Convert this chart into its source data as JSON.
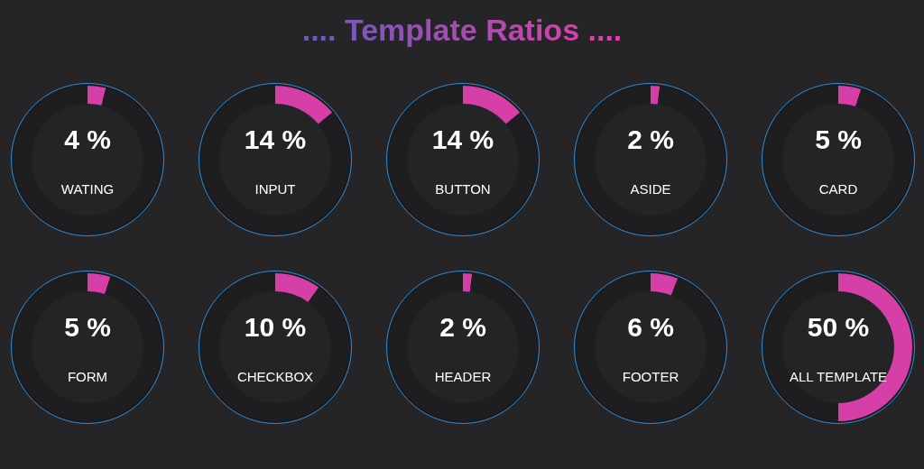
{
  "chart_data": [
    {
      "type": "other",
      "title": ".... Template Ratios ...."
    },
    {
      "type": "donut",
      "title": "WATING",
      "categories": [
        null,
        null
      ],
      "values": [
        4,
        96
      ],
      "colors": [
        "#d63fa8",
        "#1e1e21"
      ],
      "value_labels": [
        "4 %",
        null
      ]
    },
    {
      "type": "donut",
      "title": "INPUT",
      "categories": [
        null,
        null
      ],
      "values": [
        14,
        86
      ],
      "colors": [
        "#d63fa8",
        "#1e1e21"
      ],
      "value_labels": [
        "14 %",
        null
      ]
    },
    {
      "type": "donut",
      "title": "BUTTON",
      "categories": [
        null,
        null
      ],
      "values": [
        14,
        86
      ],
      "colors": [
        "#d63fa8",
        "#1e1e21"
      ],
      "value_labels": [
        "14 %",
        null
      ]
    },
    {
      "type": "donut",
      "title": "ASIDE",
      "categories": [
        null,
        null
      ],
      "values": [
        2,
        98
      ],
      "colors": [
        "#d63fa8",
        "#1e1e21"
      ],
      "value_labels": [
        "2 %",
        null
      ]
    },
    {
      "type": "donut",
      "title": "CARD",
      "categories": [
        null,
        null
      ],
      "values": [
        5,
        95
      ],
      "colors": [
        "#d63fa8",
        "#1e1e21"
      ],
      "value_labels": [
        "5 %",
        null
      ]
    },
    {
      "type": "donut",
      "title": "FORM",
      "categories": [
        null,
        null
      ],
      "values": [
        5,
        95
      ],
      "colors": [
        "#d63fa8",
        "#1e1e21"
      ],
      "value_labels": [
        "5 %",
        null
      ]
    },
    {
      "type": "donut",
      "title": "CHECKBOX",
      "categories": [
        null,
        null
      ],
      "values": [
        10,
        90
      ],
      "colors": [
        "#d63fa8",
        "#1e1e21"
      ],
      "value_labels": [
        "10 %",
        null
      ]
    },
    {
      "type": "donut",
      "title": "HEADER",
      "categories": [
        null,
        null
      ],
      "values": [
        2,
        98
      ],
      "colors": [
        "#d63fa8",
        "#1e1e21"
      ],
      "value_labels": [
        "2 %",
        null
      ]
    },
    {
      "type": "donut",
      "title": "FOOTER",
      "categories": [
        null,
        null
      ],
      "values": [
        6,
        94
      ],
      "colors": [
        "#d63fa8",
        "#1e1e21"
      ],
      "value_labels": [
        "6 %",
        null
      ]
    },
    {
      "type": "donut",
      "title": "ALL TEMPLATE",
      "categories": [
        null,
        null
      ],
      "values": [
        50,
        50
      ],
      "colors": [
        "#d63fa8",
        "#1e1e21"
      ],
      "value_labels": [
        "50 %",
        null
      ]
    }
  ]
}
